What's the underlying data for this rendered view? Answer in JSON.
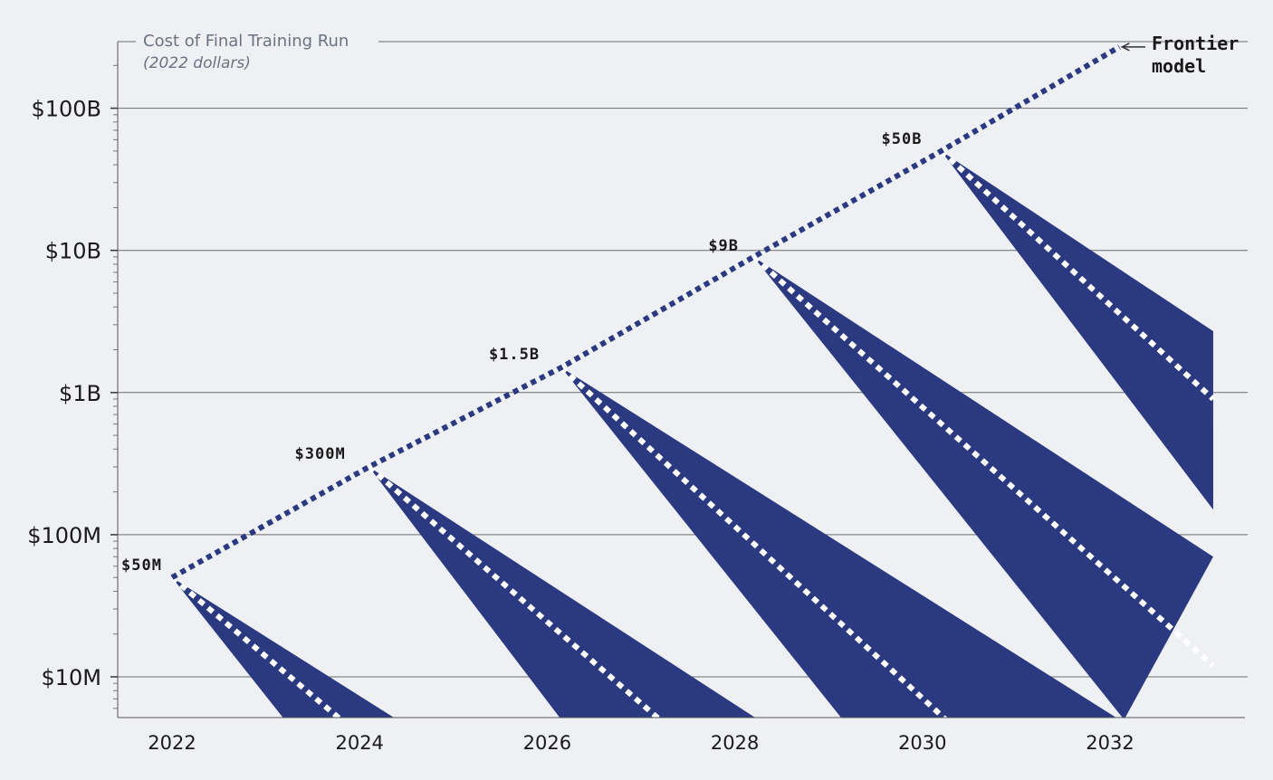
{
  "chart_data": {
    "type": "line",
    "title": "Cost of Final Training Run",
    "subtitle": "(2022 dollars)",
    "y_scale": "log",
    "ylim": [
      5000000,
      300000000000
    ],
    "xlim": [
      2021.4,
      2033.5
    ],
    "y_ticks": [
      {
        "value": 10000000,
        "label": "$10M"
      },
      {
        "value": 100000000,
        "label": "$100M"
      },
      {
        "value": 1000000000,
        "label": "$1B"
      },
      {
        "value": 10000000000,
        "label": "$10B"
      },
      {
        "value": 100000000000,
        "label": "$100B"
      }
    ],
    "x_ticks": [
      {
        "value": 2022,
        "label": "2022"
      },
      {
        "value": 2024,
        "label": "2024"
      },
      {
        "value": 2026,
        "label": "2026"
      },
      {
        "value": 2028,
        "label": "2028"
      },
      {
        "value": 2030,
        "label": "2030"
      },
      {
        "value": 2032,
        "label": "2032"
      }
    ],
    "legend": {
      "label": "Frontier\nmodel",
      "placement": "top-right"
    },
    "frontier": {
      "x": [
        2022,
        2024.1,
        2026.15,
        2028.2,
        2030.2,
        2032.1
      ],
      "y": [
        50000000,
        300000000,
        1500000000,
        9000000000,
        50000000000,
        270000000000
      ]
    },
    "annotations": [
      {
        "x": 2022,
        "y": 50000000,
        "label": "$50M"
      },
      {
        "x": 2024.1,
        "y": 300000000,
        "label": "$300M"
      },
      {
        "x": 2026.15,
        "y": 1500000000,
        "label": "$1.5B"
      },
      {
        "x": 2028.2,
        "y": 9000000000,
        "label": "$9B"
      },
      {
        "x": 2030.2,
        "y": 50000000000,
        "label": "$50B"
      }
    ],
    "decay_cones": [
      {
        "start_x": 2022,
        "start_y": 50000000,
        "upper": [
          [
            2024.4,
            5000000
          ]
        ],
        "mid": [
          [
            2023.8,
            5000000
          ]
        ],
        "lower": [
          [
            2023.2,
            5000000
          ]
        ]
      },
      {
        "start_x": 2024.1,
        "start_y": 300000000,
        "upper": [
          [
            2028.25,
            5000000
          ]
        ],
        "mid": [
          [
            2027.2,
            5000000
          ]
        ],
        "lower": [
          [
            2026.15,
            5000000
          ]
        ]
      },
      {
        "start_x": 2026.15,
        "start_y": 1500000000,
        "upper": [
          [
            2032.1,
            5000000
          ]
        ],
        "mid": [
          [
            2030.25,
            5000000
          ]
        ],
        "lower": [
          [
            2029.15,
            5000000
          ]
        ]
      },
      {
        "start_x": 2028.2,
        "start_y": 9000000000,
        "upper": [
          [
            2033.1,
            70000000
          ]
        ],
        "mid": [
          [
            2033.1,
            12000000
          ]
        ],
        "lower": [
          [
            2032.15,
            5000000
          ]
        ]
      },
      {
        "start_x": 2030.2,
        "start_y": 50000000000,
        "upper": [
          [
            2033.1,
            2700000000
          ]
        ],
        "mid": [
          [
            2033.1,
            900000000
          ]
        ],
        "lower": [
          [
            2033.1,
            150000000
          ]
        ]
      }
    ],
    "colors": {
      "cone": "#2b3a80",
      "frontier": "#2b3a80",
      "mid_line": "#ffffff",
      "grid": "#6b6b6b",
      "background": "#eef0f4"
    },
    "grid": true
  }
}
